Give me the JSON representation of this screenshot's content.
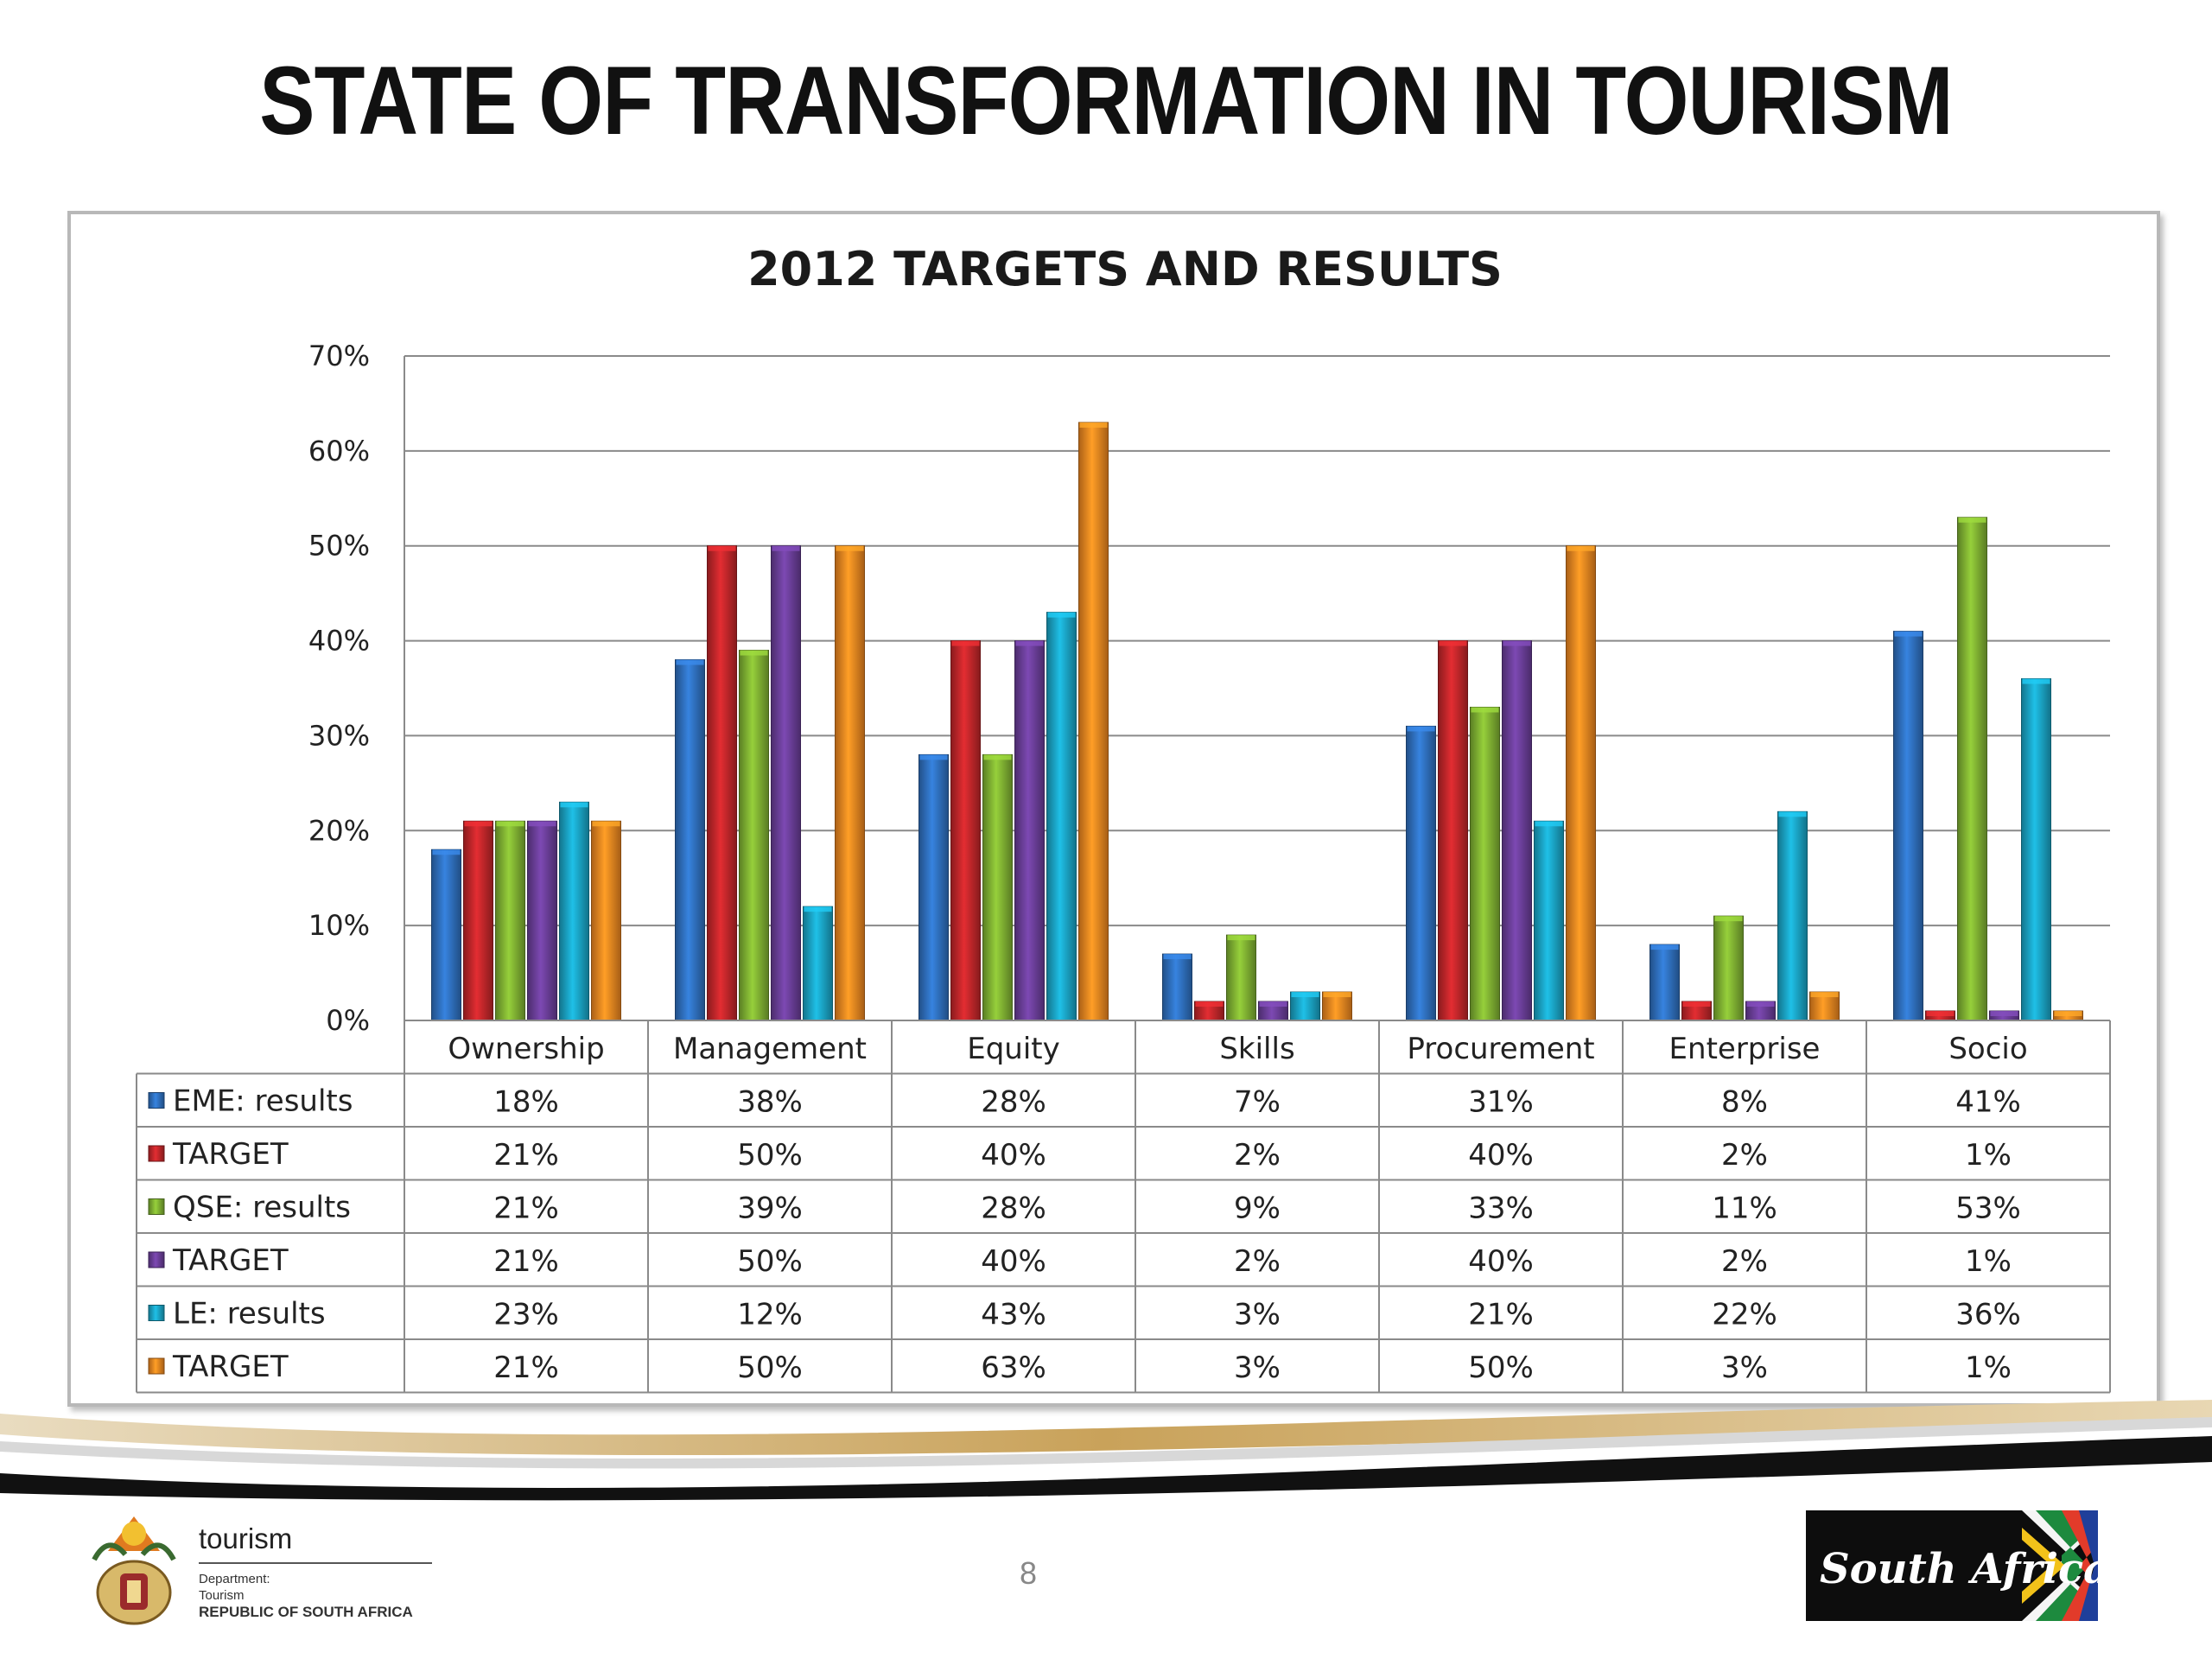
{
  "slide": {
    "title": "STATE OF TRANSFORMATION IN TOURISM",
    "page_number": "8"
  },
  "footer": {
    "department_name": "tourism",
    "department_lines": [
      "Department:",
      "Tourism",
      "REPUBLIC OF SOUTH AFRICA"
    ],
    "brand_logo_text": "South Africa"
  },
  "chart_data": {
    "type": "bar",
    "title": "2012 TARGETS AND RESULTS",
    "xlabel": "",
    "ylabel": "",
    "ylim": [
      0,
      0.7
    ],
    "yticks": [
      "0%",
      "10%",
      "20%",
      "30%",
      "40%",
      "50%",
      "60%",
      "70%"
    ],
    "grid": true,
    "legend": "data-table",
    "categories": [
      "Ownership",
      "Management",
      "Equity",
      "Skills",
      "Procurement",
      "Enterprise",
      "Socio"
    ],
    "series": [
      {
        "name": "EME: results",
        "color": "#2f6fbd",
        "values": [
          0.18,
          0.38,
          0.28,
          0.07,
          0.31,
          0.08,
          0.41
        ],
        "labels": [
          "18%",
          "38%",
          "28%",
          "7%",
          "31%",
          "8%",
          "41%"
        ]
      },
      {
        "name": "TARGET",
        "color": "#c0262a",
        "values": [
          0.21,
          0.5,
          0.4,
          0.02,
          0.4,
          0.02,
          0.01
        ],
        "labels": [
          "21%",
          "50%",
          "40%",
          "2%",
          "40%",
          "2%",
          "1%"
        ]
      },
      {
        "name": "QSE: results",
        "color": "#7fb032",
        "values": [
          0.21,
          0.39,
          0.28,
          0.09,
          0.33,
          0.11,
          0.53
        ],
        "labels": [
          "21%",
          "39%",
          "28%",
          "9%",
          "33%",
          "11%",
          "53%"
        ]
      },
      {
        "name": "TARGET",
        "color": "#6a3e98",
        "values": [
          0.21,
          0.5,
          0.4,
          0.02,
          0.4,
          0.02,
          0.01
        ],
        "labels": [
          "21%",
          "50%",
          "40%",
          "2%",
          "40%",
          "2%",
          "1%"
        ]
      },
      {
        "name": "LE: results",
        "color": "#1aa3c4",
        "values": [
          0.23,
          0.12,
          0.43,
          0.03,
          0.21,
          0.22,
          0.36
        ],
        "labels": [
          "23%",
          "12%",
          "43%",
          "3%",
          "21%",
          "22%",
          "36%"
        ]
      },
      {
        "name": "TARGET",
        "color": "#ee8620",
        "values": [
          0.21,
          0.5,
          0.63,
          0.03,
          0.5,
          0.03,
          0.01
        ],
        "labels": [
          "21%",
          "50%",
          "63%",
          "3%",
          "50%",
          "3%",
          "1%"
        ]
      }
    ]
  }
}
